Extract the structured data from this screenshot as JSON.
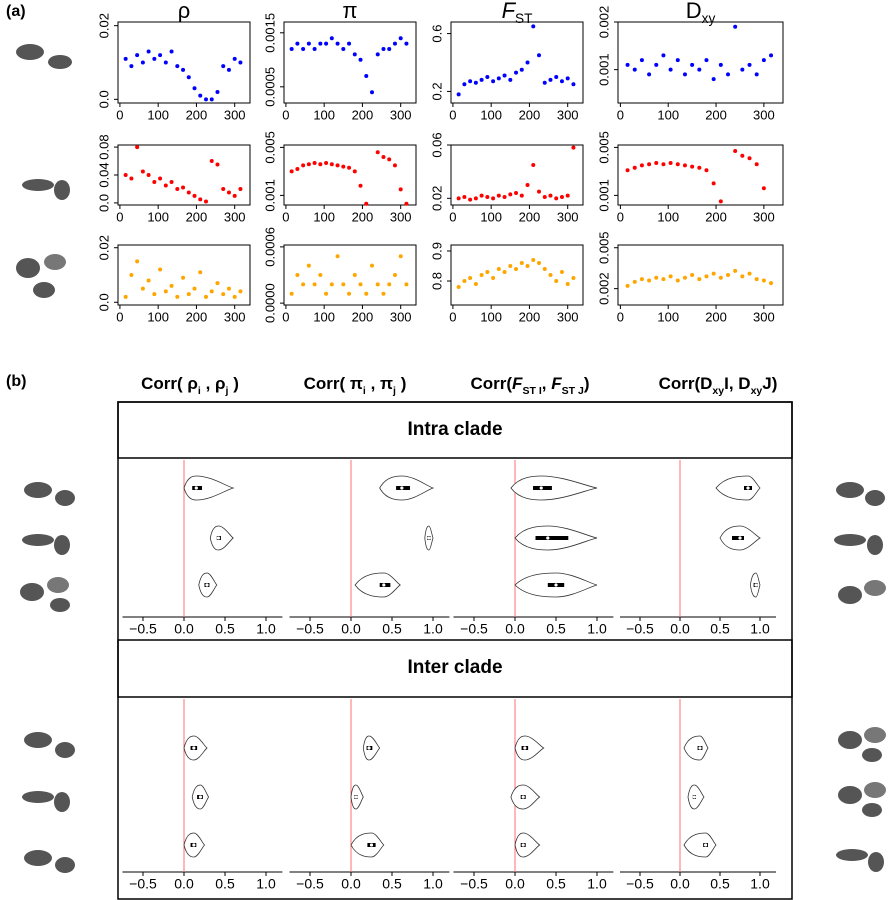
{
  "label_a": "(a)",
  "label_b": "(b)",
  "chart_data": [
    {
      "type": "scatter",
      "x": [
        15,
        30,
        45,
        60,
        75,
        90,
        105,
        120,
        135,
        150,
        165,
        180,
        195,
        210,
        225,
        240,
        255,
        270,
        285,
        300,
        315
      ],
      "xlim": [
        -5,
        340
      ],
      "xticks": [
        0,
        100,
        200,
        300
      ],
      "headers": [
        [
          {
            "text": "ρ"
          }
        ],
        [
          {
            "text": "π"
          }
        ],
        [
          {
            "text": "F",
            "italic": true
          },
          {
            "text": "ST",
            "sub": true
          }
        ],
        [
          {
            "text": "D"
          },
          {
            "text": "xy",
            "sub": true
          }
        ]
      ],
      "rows": [
        {
          "color": "#0000ff",
          "panels": [
            {
              "ylim": [
                -0.001,
                0.021
              ],
              "yticks": [
                {
                  "value": 0,
                  "label": "0.0"
                },
                0.02
              ],
              "values": [
                0.011,
                0.009,
                0.012,
                0.01,
                0.013,
                0.011,
                0.012,
                0.01,
                0.013,
                0.009,
                0.008,
                0.006,
                0.003,
                0.001,
                0.0,
                0.0,
                0.002,
                0.009,
                0.008,
                0.011,
                0.01
              ]
            },
            {
              "ylim": [
                0.0002,
                0.0017
              ],
              "yticks": [
                0.0005,
                0.0015
              ],
              "values": [
                0.0012,
                0.0013,
                0.0012,
                0.0013,
                0.0012,
                0.0013,
                0.0013,
                0.0014,
                0.0013,
                0.0012,
                0.0013,
                0.0011,
                0.001,
                0.0007,
                0.0004,
                0.0011,
                0.0012,
                0.0012,
                0.0013,
                0.0014,
                0.0013
              ]
            },
            {
              "ylim": [
                0.12,
                0.68
              ],
              "yticks": [
                0.2,
                0.6
              ],
              "values": [
                0.18,
                0.25,
                0.27,
                0.26,
                0.28,
                0.3,
                0.27,
                0.29,
                0.31,
                0.28,
                0.33,
                0.35,
                0.4,
                0.65,
                0.45,
                0.26,
                0.28,
                0.3,
                0.27,
                0.29,
                0.25
              ]
            },
            {
              "ylim": [
                0.0003,
                0.002
              ],
              "yticks": [
                0.001,
                0.002
              ],
              "values": [
                0.0011,
                0.001,
                0.0012,
                0.0009,
                0.0011,
                0.0013,
                0.001,
                0.0012,
                0.0009,
                0.0011,
                0.001,
                0.0012,
                0.0008,
                0.0011,
                0.0009,
                0.0019,
                0.001,
                0.0011,
                0.0009,
                0.0012,
                0.0013
              ]
            }
          ]
        },
        {
          "color": "#ff0000",
          "panels": [
            {
              "ylim": [
                -0.003,
                0.083
              ],
              "yticks": [
                {
                  "value": 0,
                  "label": "0.0"
                },
                0.04,
                0.08
              ],
              "values": [
                0.04,
                0.035,
                0.08,
                0.045,
                0.04,
                0.03,
                0.035,
                0.025,
                0.03,
                0.02,
                0.022,
                0.015,
                0.01,
                0.005,
                0.002,
                0.06,
                0.055,
                0.02,
                0.015,
                0.01,
                0.02
              ]
            },
            {
              "ylim": [
                0.0002,
                0.0052
              ],
              "yticks": [
                0.001,
                0.005
              ],
              "values": [
                0.003,
                0.0032,
                0.0035,
                0.0036,
                0.0037,
                0.0036,
                0.0037,
                0.0036,
                0.0035,
                0.0034,
                0.0033,
                0.003,
                0.0018,
                0.0003,
                null,
                0.0046,
                0.0042,
                0.004,
                0.0035,
                0.0015,
                0.0003
              ]
            },
            {
              "ylim": [
                0.015,
                0.06
              ],
              "yticks": [
                0.02,
                0.06
              ],
              "values": [
                0.02,
                0.021,
                0.019,
                0.02,
                0.022,
                0.021,
                0.02,
                0.022,
                0.021,
                0.023,
                0.024,
                0.022,
                0.03,
                0.045,
                0.025,
                0.021,
                0.022,
                0.02,
                0.021,
                0.022,
                0.058
              ]
            },
            {
              "ylim": [
                0.0002,
                0.0052
              ],
              "yticks": [
                0.001,
                0.005
              ],
              "values": [
                0.0031,
                0.0033,
                0.0035,
                0.0036,
                0.0037,
                0.0036,
                0.0037,
                0.0036,
                0.0035,
                0.0034,
                0.0033,
                0.0031,
                0.002,
                0.0005,
                null,
                0.0047,
                0.0043,
                0.0041,
                0.0036,
                0.0016,
                null
              ]
            }
          ]
        },
        {
          "color": "#ffa500",
          "panels": [
            {
              "ylim": [
                -0.001,
                0.021
              ],
              "yticks": [
                {
                  "value": 0,
                  "label": "0.0"
                },
                0.02
              ],
              "values": [
                0.002,
                0.01,
                0.015,
                0.005,
                0.008,
                0.003,
                0.012,
                0.004,
                0.006,
                0.002,
                0.009,
                0.003,
                0.005,
                0.011,
                0.002,
                0.004,
                0.007,
                0.003,
                0.005,
                0.002,
                0.004
              ]
            },
            {
              "ylim": [
                -2e-05,
                0.00062
              ],
              "yticks": [
                {
                  "value": 0,
                  "label": "0.0000"
                },
                0.0006
              ],
              "values": [
                0.0001,
                0.0003,
                0.0002,
                0.0004,
                0.0002,
                0.0003,
                0.0001,
                0.0002,
                0.0005,
                0.0002,
                0.0001,
                0.0003,
                0.0002,
                0.0001,
                0.0004,
                0.0002,
                0.0001,
                0.0002,
                0.0003,
                0.0005,
                0.0002
              ]
            },
            {
              "ylim": [
                0.72,
                0.92
              ],
              "yticks": [
                0.8,
                0.9
              ],
              "values": [
                0.78,
                0.8,
                0.81,
                0.79,
                0.82,
                0.83,
                0.81,
                0.84,
                0.83,
                0.85,
                0.84,
                0.86,
                0.85,
                0.87,
                0.86,
                0.84,
                0.82,
                0.8,
                0.83,
                0.79,
                0.81
              ]
            },
            {
              "ylim": [
                0.0008,
                0.0052
              ],
              "yticks": [
                0.002,
                0.005
              ],
              "values": [
                0.0022,
                0.0025,
                0.0027,
                0.0026,
                0.0028,
                0.0027,
                0.0029,
                0.0026,
                0.0028,
                0.003,
                0.0027,
                0.0029,
                0.0031,
                0.0028,
                0.003,
                0.0033,
                0.0029,
                0.0031,
                0.0027,
                0.0026,
                0.0024
              ]
            }
          ]
        }
      ]
    },
    {
      "type": "violin",
      "xlim": [
        -0.75,
        1.2
      ],
      "xticks": [
        {
          "value": -0.5,
          "label": "−0.5"
        },
        {
          "value": 0,
          "label": "0.0"
        },
        0.5,
        {
          "value": 1,
          "label": "1.0"
        }
      ],
      "refline": 0,
      "refline_color": "#ff7070",
      "headers": [
        [
          {
            "text": "Corr( ρ"
          },
          {
            "text": "i",
            "sub": true
          },
          {
            "text": " , ρ"
          },
          {
            "text": "j",
            "sub": true
          },
          {
            "text": " )"
          }
        ],
        [
          {
            "text": "Corr( π"
          },
          {
            "text": "i",
            "sub": true
          },
          {
            "text": " , π"
          },
          {
            "text": "j",
            "sub": true
          },
          {
            "text": " )"
          }
        ],
        [
          {
            "text": "Corr("
          },
          {
            "text": "F",
            "italic": true
          },
          {
            "text": "ST I",
            "sub": true
          },
          {
            "text": ", "
          },
          {
            "text": "F",
            "italic": true
          },
          {
            "text": "ST J",
            "sub": true
          },
          {
            "text": ")"
          }
        ],
        [
          {
            "text": "Corr(D"
          },
          {
            "text": "xy",
            "sub": true
          },
          {
            "text": "I, D"
          },
          {
            "text": "xy",
            "sub": true
          },
          {
            "text": "J)"
          }
        ]
      ],
      "sections": [
        {
          "title": "Intra clade",
          "columns": [
            [
              {
                "min": 0.0,
                "q1": 0.1,
                "median": 0.15,
                "q3": 0.22,
                "max": 0.6
              },
              {
                "min": 0.32,
                "q1": 0.4,
                "median": 0.42,
                "q3": 0.45,
                "max": 0.6
              },
              {
                "min": 0.18,
                "q1": 0.25,
                "median": 0.28,
                "q3": 0.31,
                "max": 0.4
              }
            ],
            [
              {
                "min": 0.35,
                "q1": 0.55,
                "median": 0.62,
                "q3": 0.72,
                "max": 1.0
              },
              {
                "min": 0.9,
                "q1": 0.93,
                "median": 0.95,
                "q3": 0.97,
                "max": 1.0
              },
              {
                "min": 0.05,
                "q1": 0.35,
                "median": 0.4,
                "q3": 0.48,
                "max": 0.6
              }
            ],
            [
              {
                "min": -0.05,
                "q1": 0.22,
                "median": 0.32,
                "q3": 0.45,
                "max": 1.0
              },
              {
                "min": 0.0,
                "q1": 0.25,
                "median": 0.4,
                "q3": 0.65,
                "max": 1.0
              },
              {
                "min": 0.0,
                "q1": 0.4,
                "median": 0.5,
                "q3": 0.6,
                "max": 1.0
              }
            ],
            [
              {
                "min": 0.45,
                "q1": 0.8,
                "median": 0.85,
                "q3": 0.9,
                "max": 1.0
              },
              {
                "min": 0.5,
                "q1": 0.65,
                "median": 0.75,
                "q3": 0.8,
                "max": 1.0
              },
              {
                "min": 0.88,
                "q1": 0.92,
                "median": 0.95,
                "q3": 0.97,
                "max": 1.0
              }
            ]
          ]
        },
        {
          "title": "Inter clade",
          "columns": [
            [
              {
                "min": 0.0,
                "q1": 0.08,
                "median": 0.12,
                "q3": 0.16,
                "max": 0.28
              },
              {
                "min": 0.1,
                "q1": 0.16,
                "median": 0.2,
                "q3": 0.23,
                "max": 0.3
              },
              {
                "min": 0.0,
                "q1": 0.08,
                "median": 0.12,
                "q3": 0.15,
                "max": 0.25
              }
            ],
            [
              {
                "min": 0.15,
                "q1": 0.19,
                "median": 0.22,
                "q3": 0.26,
                "max": 0.35
              },
              {
                "min": 0.0,
                "q1": 0.04,
                "median": 0.06,
                "q3": 0.08,
                "max": 0.15
              },
              {
                "min": 0.0,
                "q1": 0.2,
                "median": 0.25,
                "q3": 0.3,
                "max": 0.4
              }
            ],
            [
              {
                "min": 0.0,
                "q1": 0.08,
                "median": 0.12,
                "q3": 0.16,
                "max": 0.35
              },
              {
                "min": -0.05,
                "q1": 0.07,
                "median": 0.1,
                "q3": 0.13,
                "max": 0.3
              },
              {
                "min": 0.0,
                "q1": 0.07,
                "median": 0.1,
                "q3": 0.13,
                "max": 0.3
              }
            ],
            [
              {
                "min": 0.05,
                "q1": 0.22,
                "median": 0.25,
                "q3": 0.28,
                "max": 0.35
              },
              {
                "min": 0.1,
                "q1": 0.16,
                "median": 0.18,
                "q3": 0.2,
                "max": 0.3
              },
              {
                "min": 0.05,
                "q1": 0.29,
                "median": 0.32,
                "q3": 0.35,
                "max": 0.45
              }
            ]
          ]
        }
      ]
    }
  ]
}
